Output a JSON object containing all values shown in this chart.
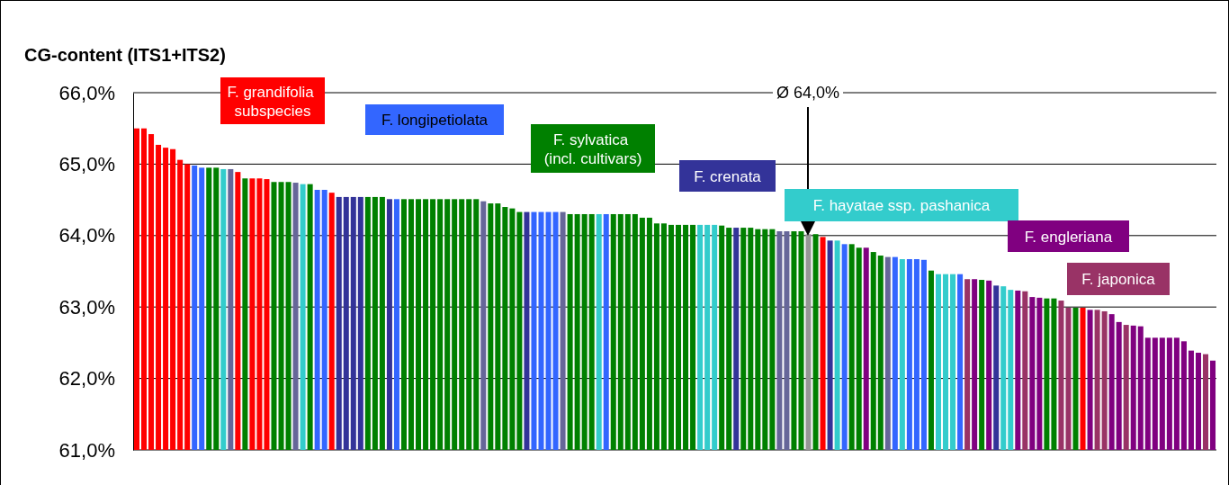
{
  "chart_data": {
    "type": "bar",
    "title": "CG-content (ITS1+ITS2)",
    "grid": "y",
    "legend": "top",
    "tick_labels": "y",
    "categories": [
      null,
      null,
      null,
      null,
      null,
      null,
      null,
      null,
      null,
      null,
      null,
      null,
      null,
      null,
      null,
      null,
      null,
      null,
      null,
      null,
      null,
      null,
      null,
      null,
      null,
      null,
      null,
      null,
      null,
      null,
      null,
      null,
      null,
      null,
      null,
      null,
      null,
      null,
      null,
      null,
      null,
      null,
      null,
      null,
      null,
      null,
      null,
      null,
      null,
      null,
      null,
      null,
      null,
      null,
      null,
      null,
      null,
      null,
      null,
      null,
      null,
      null,
      null,
      null,
      null,
      null,
      null,
      null,
      null,
      null,
      null,
      null,
      null,
      null,
      null,
      null,
      null,
      null,
      null,
      null,
      null,
      null,
      null,
      null,
      null,
      null,
      null,
      null,
      null,
      null,
      null,
      null,
      null,
      null,
      null,
      null,
      null,
      null,
      null,
      null,
      null,
      null,
      null,
      null,
      null,
      null,
      null,
      null,
      null,
      null,
      null,
      null,
      null,
      null,
      null,
      null,
      null,
      null,
      null,
      null,
      null,
      null,
      null,
      null,
      null,
      null,
      null,
      null,
      null,
      null,
      null,
      null,
      null,
      null,
      null,
      null,
      null,
      null,
      null,
      null,
      null,
      null,
      null,
      null,
      null,
      null,
      null,
      null,
      null,
      null
    ],
    "ylim": [
      61,
      66
    ],
    "yticks": [
      {
        "value": 61,
        "label": "61,0%"
      },
      {
        "value": 62,
        "label": "62,0%"
      },
      {
        "value": 63,
        "label": "63,0%"
      },
      {
        "value": 64,
        "label": "64,0%"
      },
      {
        "value": 65,
        "label": "65,0%"
      },
      {
        "value": 66,
        "label": "66,0%"
      }
    ],
    "annotations": [
      "Ø 64,0%"
    ],
    "series": [
      {
        "name": "F. grandifolia subspecies",
        "color": "#ff0000",
        "values": [
          65.5,
          65.5,
          65.42,
          65.27,
          65.23,
          65.21,
          65.06,
          65.0,
          null,
          null,
          null,
          null,
          null,
          null,
          64.89,
          null,
          64.8,
          64.8,
          64.79,
          null,
          null,
          null,
          null,
          null,
          null,
          null,
          null,
          64.6,
          null,
          null,
          null,
          null,
          null,
          null,
          null,
          null,
          null,
          null,
          null,
          null,
          null,
          null,
          null,
          null,
          null,
          null,
          null,
          null,
          null,
          null,
          null,
          null,
          null,
          null,
          null,
          null,
          null,
          null,
          null,
          null,
          null,
          null,
          null,
          null,
          null,
          null,
          null,
          null,
          null,
          null,
          null,
          null,
          null,
          null,
          null,
          null,
          null,
          null,
          null,
          null,
          null,
          null,
          null,
          null,
          null,
          null,
          null,
          null,
          null,
          null,
          null,
          null,
          null,
          null,
          null,
          63.98,
          null,
          null,
          null,
          null,
          null,
          null,
          null,
          null,
          null,
          null,
          null,
          null,
          null,
          null,
          null,
          null,
          null,
          null,
          null,
          null,
          null,
          null,
          null,
          null,
          null,
          null,
          null,
          null,
          null,
          null,
          null,
          null,
          null,
          null,
          null,
          62.99,
          null,
          null,
          null,
          null,
          null,
          null,
          null,
          null,
          null,
          null,
          null,
          null,
          null,
          null,
          null,
          null,
          null,
          null
        ]
      },
      {
        "name": "F. longipetiolata",
        "color": "#3366ff",
        "values": [
          null,
          null,
          null,
          null,
          null,
          null,
          null,
          null,
          64.98,
          64.95,
          null,
          null,
          null,
          null,
          null,
          null,
          null,
          null,
          null,
          null,
          null,
          null,
          null,
          null,
          null,
          64.64,
          64.64,
          null,
          null,
          null,
          null,
          null,
          null,
          null,
          null,
          null,
          64.51,
          null,
          null,
          null,
          null,
          null,
          null,
          null,
          null,
          null,
          null,
          null,
          null,
          null,
          null,
          null,
          null,
          null,
          null,
          64.33,
          64.33,
          64.33,
          64.33,
          null,
          null,
          null,
          null,
          null,
          null,
          64.3,
          null,
          null,
          null,
          null,
          null,
          null,
          null,
          null,
          null,
          null,
          null,
          null,
          null,
          null,
          null,
          null,
          null,
          null,
          null,
          null,
          null,
          null,
          null,
          null,
          null,
          null,
          null,
          null,
          null,
          null,
          null,
          null,
          63.88,
          null,
          null,
          null,
          null,
          null,
          null,
          63.7,
          null,
          63.67,
          63.67,
          63.66,
          null,
          null,
          null,
          null,
          63.46,
          null,
          null,
          null,
          null,
          null,
          null,
          null,
          null,
          null,
          null,
          null,
          null,
          null,
          null,
          null,
          null,
          null,
          null,
          null,
          null,
          null,
          null,
          null,
          null,
          null,
          null,
          null,
          null,
          null,
          null,
          null,
          null,
          null,
          null,
          null
        ]
      },
      {
        "name": "F. sylvatica (incl. cultivars)",
        "color": "#008000",
        "values": [
          null,
          null,
          null,
          null,
          null,
          null,
          null,
          null,
          null,
          null,
          64.95,
          64.95,
          null,
          null,
          null,
          64.8,
          null,
          null,
          null,
          64.75,
          64.75,
          64.75,
          null,
          null,
          64.72,
          null,
          null,
          null,
          null,
          null,
          null,
          null,
          64.54,
          64.54,
          64.54,
          null,
          null,
          64.51,
          64.51,
          64.51,
          64.51,
          64.51,
          64.51,
          64.51,
          64.51,
          64.51,
          64.51,
          64.51,
          null,
          64.45,
          64.45,
          64.4,
          64.38,
          64.33,
          null,
          null,
          null,
          null,
          null,
          null,
          64.3,
          64.3,
          64.3,
          64.3,
          null,
          null,
          64.3,
          64.3,
          64.3,
          64.3,
          64.25,
          64.25,
          64.17,
          64.17,
          64.15,
          64.15,
          64.15,
          64.15,
          null,
          null,
          null,
          64.14,
          64.11,
          null,
          64.11,
          64.11,
          64.09,
          64.09,
          64.09,
          null,
          null,
          64.06,
          64.06,
          null,
          64.02,
          null,
          null,
          null,
          null,
          63.88,
          63.83,
          null,
          63.77,
          63.72,
          null,
          null,
          null,
          null,
          null,
          null,
          63.51,
          null,
          null,
          null,
          null,
          null,
          null,
          63.38,
          null,
          null,
          null,
          null,
          null,
          null,
          null,
          null,
          63.12,
          63.12,
          null,
          null,
          62.99,
          null,
          null,
          null,
          null,
          null,
          null,
          null,
          null,
          null,
          null,
          null,
          null,
          null,
          null,
          null,
          null,
          null,
          null,
          null
        ]
      },
      {
        "name": "F. crenata",
        "color": "#333399",
        "values": [
          null,
          null,
          null,
          null,
          null,
          null,
          null,
          null,
          null,
          null,
          null,
          null,
          null,
          null,
          null,
          null,
          null,
          null,
          null,
          null,
          null,
          null,
          null,
          null,
          null,
          null,
          null,
          null,
          64.54,
          64.54,
          64.54,
          64.54,
          null,
          null,
          null,
          64.51,
          null,
          null,
          null,
          null,
          null,
          null,
          null,
          null,
          null,
          null,
          null,
          null,
          null,
          null,
          null,
          null,
          null,
          null,
          64.33,
          null,
          null,
          null,
          null,
          null,
          null,
          null,
          null,
          null,
          null,
          null,
          null,
          null,
          null,
          null,
          null,
          null,
          null,
          null,
          null,
          null,
          null,
          null,
          null,
          null,
          null,
          null,
          null,
          64.11,
          null,
          null,
          null,
          null,
          null,
          null,
          null,
          null,
          null,
          null,
          null,
          null,
          63.93,
          null,
          null,
          null,
          null,
          null,
          null,
          null,
          null,
          null,
          null,
          null,
          null,
          null,
          null,
          null,
          null,
          null,
          null,
          null,
          null,
          null,
          null,
          63.3,
          null,
          null,
          null,
          null,
          null,
          null,
          null,
          null,
          null,
          null,
          null,
          null,
          null,
          null,
          null,
          null,
          null,
          null,
          null,
          null,
          null,
          null,
          null,
          null,
          null,
          null,
          null,
          null,
          null,
          null
        ]
      },
      {
        "name": "F. hayatae ssp. pashanica",
        "color": "#33cccc",
        "values": [
          null,
          null,
          null,
          null,
          null,
          null,
          null,
          null,
          null,
          null,
          null,
          null,
          64.93,
          null,
          null,
          null,
          null,
          null,
          null,
          null,
          null,
          null,
          null,
          64.72,
          null,
          null,
          null,
          null,
          null,
          null,
          null,
          null,
          null,
          null,
          null,
          null,
          null,
          null,
          null,
          null,
          null,
          null,
          null,
          null,
          null,
          null,
          null,
          null,
          null,
          null,
          null,
          null,
          null,
          null,
          null,
          null,
          null,
          null,
          null,
          null,
          null,
          null,
          null,
          null,
          64.3,
          null,
          null,
          null,
          null,
          null,
          null,
          null,
          null,
          null,
          null,
          null,
          null,
          null,
          64.15,
          64.15,
          64.15,
          null,
          null,
          null,
          null,
          null,
          null,
          null,
          null,
          null,
          null,
          null,
          null,
          null,
          null,
          null,
          null,
          63.93,
          null,
          null,
          null,
          null,
          null,
          null,
          null,
          null,
          63.67,
          null,
          null,
          null,
          null,
          63.46,
          63.46,
          63.46,
          null,
          null,
          null,
          null,
          null,
          null,
          63.29,
          63.24,
          null,
          null,
          null,
          null,
          null,
          null,
          null,
          null,
          null,
          null,
          null,
          null,
          null,
          null,
          null,
          null,
          null,
          null,
          null,
          null,
          null,
          null,
          null,
          null,
          null,
          null,
          null,
          null
        ]
      },
      {
        "color": "#666699",
        "values": [
          null,
          null,
          null,
          null,
          null,
          null,
          null,
          null,
          null,
          null,
          null,
          null,
          null,
          64.93,
          null,
          null,
          null,
          null,
          null,
          null,
          null,
          null,
          64.74,
          null,
          null,
          null,
          null,
          null,
          null,
          null,
          null,
          null,
          null,
          null,
          null,
          null,
          null,
          null,
          null,
          null,
          null,
          null,
          null,
          null,
          null,
          null,
          null,
          null,
          64.48,
          null,
          null,
          null,
          null,
          null,
          null,
          null,
          null,
          null,
          null,
          64.33,
          null,
          null,
          null,
          null,
          null,
          null,
          null,
          null,
          null,
          null,
          null,
          null,
          null,
          null,
          null,
          null,
          null,
          null,
          null,
          null,
          null,
          null,
          null,
          null,
          null,
          null,
          null,
          null,
          null,
          64.06,
          64.06,
          null,
          null,
          null,
          null,
          null,
          null,
          null,
          null,
          null,
          null,
          null,
          null,
          null,
          63.7,
          null,
          null,
          null,
          null,
          null,
          null,
          null,
          null,
          null,
          null,
          null,
          null,
          null,
          null,
          null,
          null,
          null,
          null,
          null,
          null,
          null,
          null,
          null,
          null,
          null,
          null,
          null,
          null,
          null,
          null,
          null,
          null,
          null,
          null,
          null,
          null,
          null,
          null,
          null,
          null,
          null,
          null,
          null,
          null,
          null
        ]
      },
      {
        "color": "#969696",
        "values": [
          null,
          null,
          null,
          null,
          null,
          null,
          null,
          null,
          null,
          null,
          null,
          null,
          null,
          null,
          null,
          null,
          null,
          null,
          null,
          null,
          null,
          null,
          null,
          null,
          null,
          null,
          null,
          null,
          null,
          null,
          null,
          null,
          null,
          null,
          null,
          null,
          null,
          null,
          null,
          null,
          null,
          null,
          null,
          null,
          null,
          null,
          null,
          null,
          null,
          null,
          null,
          null,
          null,
          null,
          null,
          null,
          null,
          null,
          null,
          null,
          null,
          null,
          null,
          null,
          null,
          null,
          null,
          null,
          null,
          null,
          null,
          null,
          null,
          null,
          null,
          null,
          null,
          null,
          null,
          null,
          null,
          null,
          null,
          null,
          null,
          null,
          null,
          null,
          null,
          null,
          null,
          null,
          null,
          64.02,
          null,
          null,
          null,
          null,
          null,
          null,
          null,
          null,
          null,
          null,
          null,
          null,
          null,
          null,
          null,
          null,
          null,
          null,
          null,
          null,
          null,
          null,
          null,
          null,
          null,
          null,
          null,
          null,
          null,
          null,
          null,
          null,
          null,
          null,
          null,
          null,
          null,
          null,
          null,
          null,
          null,
          null,
          null,
          null,
          null,
          null,
          null,
          null,
          null,
          null,
          null,
          null,
          null,
          null,
          null,
          null
        ]
      },
      {
        "name": "F. engleriana",
        "color": "#800080",
        "values": [
          null,
          null,
          null,
          null,
          null,
          null,
          null,
          null,
          null,
          null,
          null,
          null,
          null,
          null,
          null,
          null,
          null,
          null,
          null,
          null,
          null,
          null,
          null,
          null,
          null,
          null,
          null,
          null,
          null,
          null,
          null,
          null,
          null,
          null,
          null,
          null,
          null,
          null,
          null,
          null,
          null,
          null,
          null,
          null,
          null,
          null,
          null,
          null,
          null,
          null,
          null,
          null,
          null,
          null,
          null,
          null,
          null,
          null,
          null,
          null,
          null,
          null,
          null,
          null,
          null,
          null,
          null,
          null,
          null,
          null,
          null,
          null,
          null,
          null,
          null,
          null,
          null,
          null,
          null,
          null,
          null,
          null,
          null,
          null,
          null,
          null,
          null,
          null,
          null,
          null,
          null,
          null,
          null,
          null,
          null,
          null,
          null,
          null,
          null,
          null,
          null,
          63.83,
          null,
          null,
          null,
          null,
          null,
          null,
          null,
          null,
          null,
          null,
          null,
          null,
          null,
          null,
          63.39,
          null,
          63.37,
          null,
          null,
          null,
          63.23,
          null,
          63.14,
          63.13,
          null,
          null,
          null,
          null,
          null,
          null,
          62.96,
          null,
          null,
          62.9,
          62.79,
          null,
          62.74,
          62.73,
          62.57,
          62.57,
          62.57,
          62.57,
          62.57,
          62.52,
          62.39,
          62.36,
          null,
          62.25
        ]
      },
      {
        "name": "F. japonica",
        "color": "#993366",
        "values": [
          null,
          null,
          null,
          null,
          null,
          null,
          null,
          null,
          null,
          null,
          null,
          null,
          null,
          null,
          null,
          null,
          null,
          null,
          null,
          null,
          null,
          null,
          null,
          null,
          null,
          null,
          null,
          null,
          null,
          null,
          null,
          null,
          null,
          null,
          null,
          null,
          null,
          null,
          null,
          null,
          null,
          null,
          null,
          null,
          null,
          null,
          null,
          null,
          null,
          null,
          null,
          null,
          null,
          null,
          null,
          null,
          null,
          null,
          null,
          null,
          null,
          null,
          null,
          null,
          null,
          null,
          null,
          null,
          null,
          null,
          null,
          null,
          null,
          null,
          null,
          null,
          null,
          null,
          null,
          null,
          null,
          null,
          null,
          null,
          null,
          null,
          null,
          null,
          null,
          null,
          null,
          null,
          null,
          null,
          null,
          null,
          null,
          null,
          null,
          null,
          null,
          null,
          null,
          null,
          null,
          null,
          null,
          null,
          null,
          null,
          null,
          null,
          null,
          null,
          null,
          63.39,
          null,
          null,
          null,
          null,
          null,
          null,
          null,
          63.22,
          null,
          null,
          null,
          null,
          63.09,
          62.99,
          null,
          null,
          null,
          62.96,
          62.94,
          null,
          null,
          62.75,
          null,
          null,
          null,
          null,
          null,
          null,
          null,
          null,
          null,
          null,
          62.34,
          null
        ]
      }
    ]
  }
}
